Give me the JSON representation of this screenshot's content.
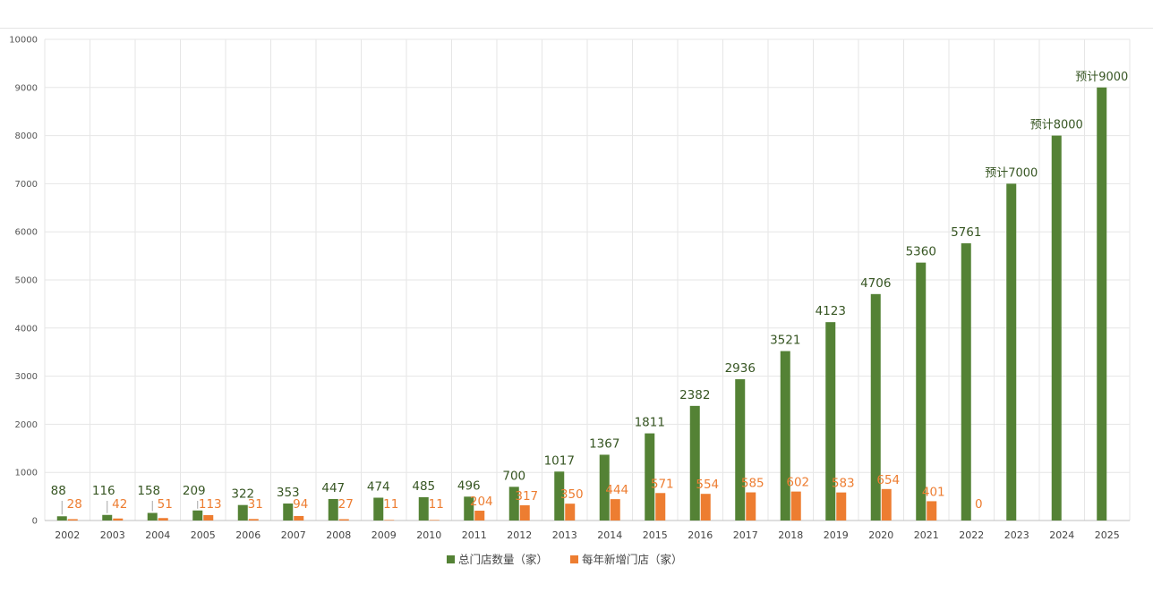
{
  "chart_data": {
    "type": "bar",
    "title": "",
    "xlabel": "",
    "ylabel": "",
    "ylim": [
      0,
      10000
    ],
    "yticks": [
      0,
      1000,
      2000,
      3000,
      4000,
      5000,
      6000,
      7000,
      8000,
      9000,
      10000
    ],
    "grid": "vertical-and-horizontal",
    "legend_position": "bottom-center",
    "categories": [
      "2002",
      "2003",
      "2004",
      "2005",
      "2006",
      "2007",
      "2008",
      "2009",
      "2010",
      "2011",
      "2012",
      "2013",
      "2014",
      "2015",
      "2016",
      "2017",
      "2018",
      "2019",
      "2020",
      "2021",
      "2022",
      "2023",
      "2024",
      "2025"
    ],
    "series": [
      {
        "name": "总门店数量（家）",
        "color": "#548235",
        "values": [
          88,
          116,
          158,
          209,
          322,
          353,
          447,
          474,
          485,
          496,
          700,
          1017,
          1367,
          1811,
          2382,
          2936,
          3521,
          4123,
          4706,
          5360,
          5761,
          7000,
          8000,
          9000
        ],
        "labels": [
          "88",
          "116",
          "158",
          "209",
          "322",
          "353",
          "447",
          "474",
          "485",
          "496",
          "700",
          "1017",
          "1367",
          "1811",
          "2382",
          "2936",
          "3521",
          "4123",
          "4706",
          "5360",
          "5761",
          "预计7000",
          "预计8000",
          "预计9000"
        ]
      },
      {
        "name": "每年新增门店（家）",
        "color": "#ed7d31",
        "values": [
          28,
          42,
          51,
          113,
          31,
          94,
          27,
          11,
          11,
          204,
          317,
          350,
          444,
          571,
          554,
          585,
          602,
          583,
          654,
          401,
          0,
          null,
          null,
          null
        ],
        "labels": [
          "28",
          "42",
          "51",
          "113",
          "31",
          "94",
          "27",
          "11",
          "11",
          "204",
          "317",
          "350",
          "444",
          "571",
          "554",
          "585",
          "602",
          "583",
          "654",
          "401",
          "0",
          "",
          "",
          ""
        ]
      }
    ]
  }
}
